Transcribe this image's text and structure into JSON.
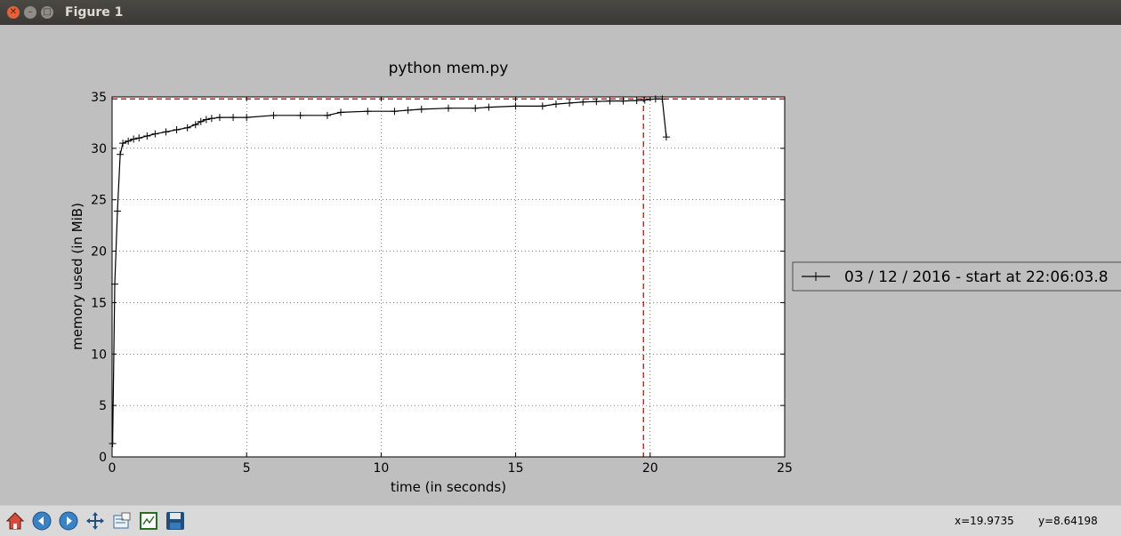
{
  "window": {
    "title": "Figure 1"
  },
  "toolbar": {
    "buttons": [
      {
        "name": "home-icon"
      },
      {
        "name": "back-arrow-icon"
      },
      {
        "name": "forward-arrow-icon"
      },
      {
        "name": "pan-icon"
      },
      {
        "name": "zoom-rect-icon"
      },
      {
        "name": "configure-subplots-icon"
      },
      {
        "name": "save-icon"
      }
    ],
    "coord_x": "x=19.9735",
    "coord_y": "y=8.64198"
  },
  "chart_data": {
    "type": "line",
    "title": "python mem.py",
    "xlabel": "time (in seconds)",
    "ylabel": "memory used (in MiB)",
    "xlim": [
      0,
      25
    ],
    "ylim": [
      0,
      35
    ],
    "xticks": [
      "0",
      "5",
      "10",
      "15",
      "20",
      "25"
    ],
    "yticks": [
      "0",
      "5",
      "10",
      "15",
      "20",
      "25",
      "30",
      "35"
    ],
    "grid": true,
    "legend_placement": "outside-right",
    "series": [
      {
        "name": "03 / 12 / 2016 - start at 22:06:03.8",
        "color": "#000000",
        "marker": "+",
        "x": [
          0.02,
          0.1,
          0.2,
          0.3,
          0.4,
          0.6,
          0.8,
          1.0,
          1.3,
          1.6,
          2.0,
          2.4,
          2.8,
          3.1,
          3.3,
          3.5,
          3.7,
          4.0,
          4.5,
          5.0,
          6.0,
          7.0,
          8.0,
          8.5,
          9.5,
          10.5,
          11.0,
          11.5,
          12.5,
          13.5,
          14.0,
          15.0,
          16.0,
          16.5,
          17.0,
          17.5,
          18.0,
          18.5,
          19.0,
          19.5,
          19.8,
          20.2,
          20.45,
          20.6
        ],
        "y": [
          1.3,
          16.8,
          23.9,
          29.4,
          30.5,
          30.7,
          30.9,
          31.0,
          31.2,
          31.4,
          31.6,
          31.8,
          32.0,
          32.3,
          32.6,
          32.8,
          32.9,
          33.0,
          33.0,
          33.0,
          33.2,
          33.2,
          33.2,
          33.5,
          33.6,
          33.6,
          33.7,
          33.8,
          33.9,
          33.9,
          34.0,
          34.1,
          34.1,
          34.3,
          34.4,
          34.5,
          34.55,
          34.6,
          34.6,
          34.65,
          34.7,
          34.8,
          34.8,
          31.1
        ]
      }
    ],
    "reference_lines": [
      {
        "orientation": "horizontal",
        "value": 34.8,
        "color": "#dd0000",
        "style": "dashed"
      },
      {
        "orientation": "vertical",
        "value": 19.75,
        "color": "#dd0000",
        "style": "dashed"
      }
    ]
  }
}
